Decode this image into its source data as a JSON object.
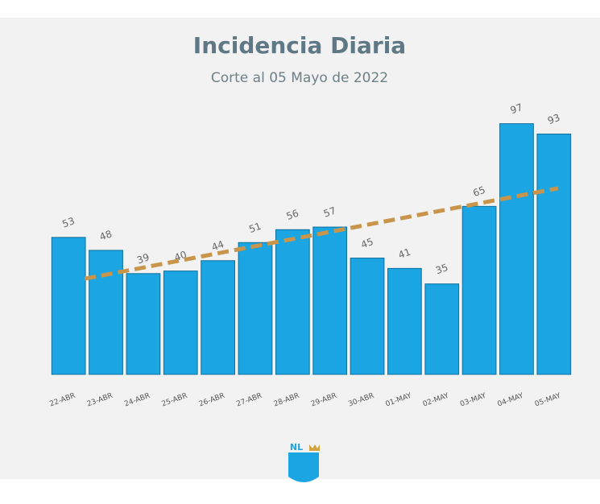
{
  "chart_data": {
    "type": "bar",
    "title": "Incidencia Diaria",
    "subtitle": "Corte al 05 Mayo de 2022",
    "categories": [
      "22-ABR",
      "23-ABR",
      "24-ABR",
      "25-ABR",
      "26-ABR",
      "27-ABR",
      "28-ABR",
      "29-ABR",
      "30-ABR",
      "01-MAY",
      "02-MAY",
      "03-MAY",
      "04-MAY",
      "05-MAY"
    ],
    "values": [
      53,
      48,
      39,
      40,
      44,
      51,
      56,
      57,
      45,
      41,
      35,
      65,
      97,
      93
    ],
    "color": "#1ba5e3",
    "ylim": [
      0,
      100
    ],
    "trendline": {
      "color": "#c8954a",
      "values": [
        37,
        72
      ]
    }
  },
  "logo": "NL"
}
